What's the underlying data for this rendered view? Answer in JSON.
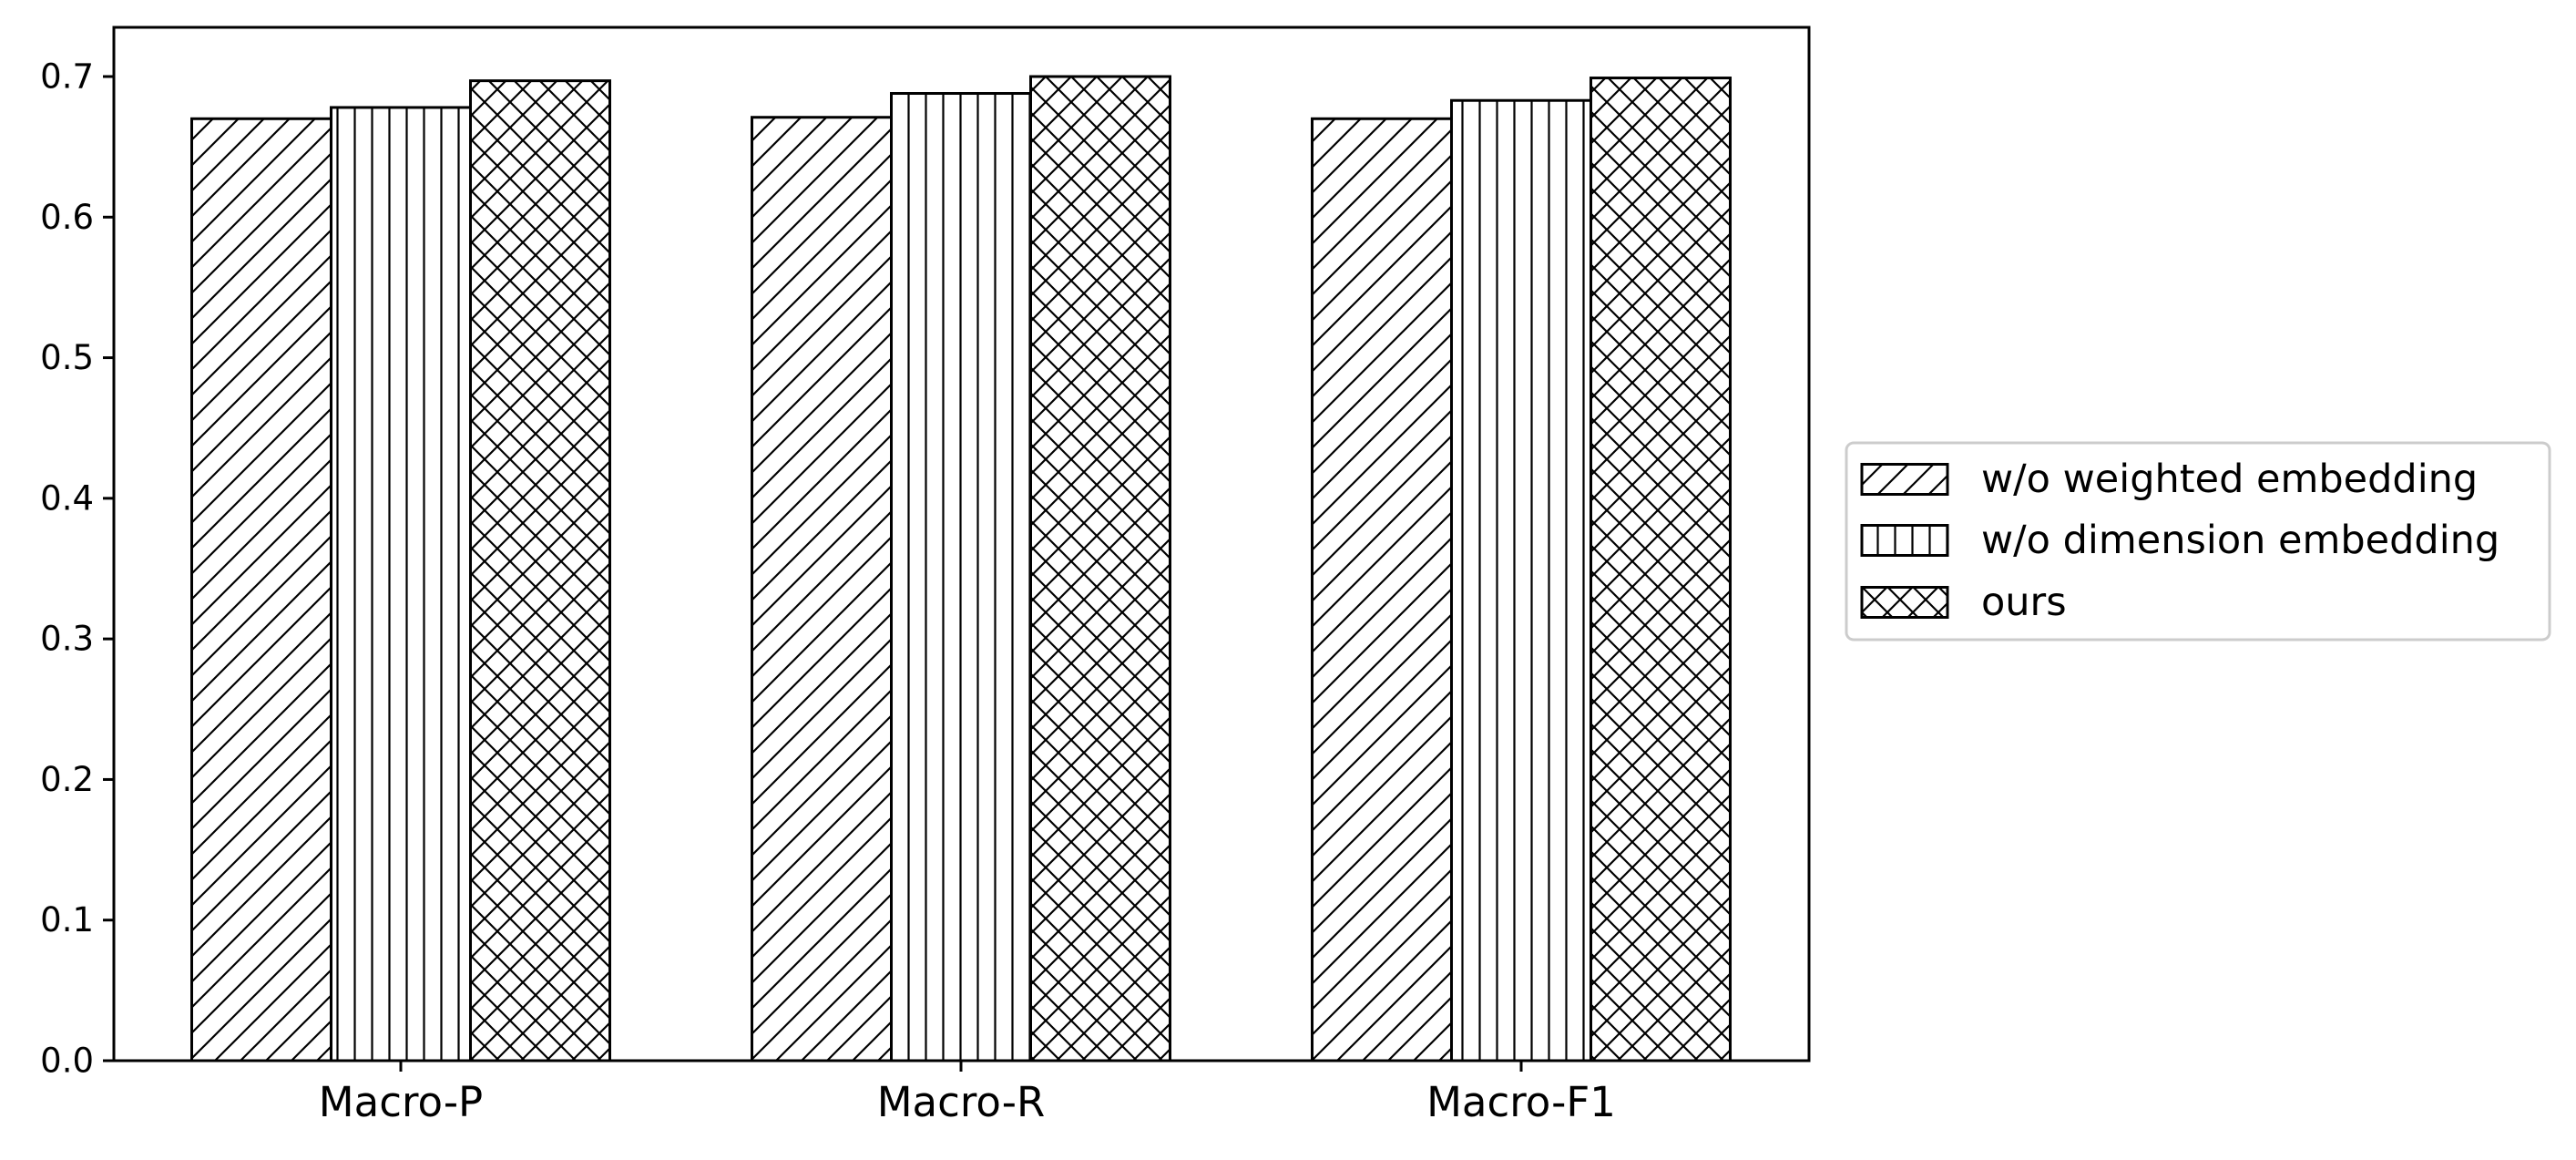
{
  "chart_data": {
    "type": "bar",
    "title": "",
    "xlabel": "",
    "ylabel": "",
    "categories": [
      "Macro-P",
      "Macro-R",
      "Macro-F1"
    ],
    "series": [
      {
        "name": "w/o weighted embedding",
        "values": [
          0.67,
          0.671,
          0.67
        ],
        "hatch": "diagonal"
      },
      {
        "name": "w/o dimension embedding",
        "values": [
          0.678,
          0.688,
          0.683
        ],
        "hatch": "vertical"
      },
      {
        "name": "ours",
        "values": [
          0.697,
          0.7,
          0.699
        ],
        "hatch": "cross"
      }
    ],
    "ylim": [
      0,
      0.735
    ],
    "yticks": [
      0.0,
      0.1,
      0.2,
      0.3,
      0.4,
      0.5,
      0.6,
      0.7
    ],
    "ytick_labels": [
      "0.0",
      "0.1",
      "0.2",
      "0.3",
      "0.4",
      "0.5",
      "0.6",
      "0.7"
    ],
    "grid": false,
    "legend_position": "outside-right",
    "colors": {
      "bar_fill": "#ffffff",
      "bar_edge": "#000000",
      "hatch": "#000000"
    }
  }
}
